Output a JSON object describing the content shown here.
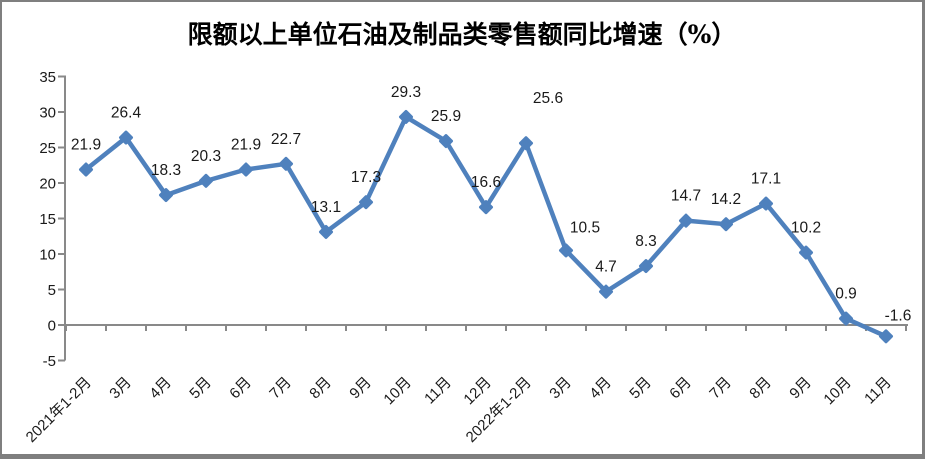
{
  "chart_data": {
    "type": "line",
    "title": "限额以上单位石油及制品类零售额同比增速（%）",
    "categories": [
      "2021年1-2月",
      "3月",
      "4月",
      "5月",
      "6月",
      "7月",
      "8月",
      "9月",
      "10月",
      "11月",
      "12月",
      "2022年1-2月",
      "3月",
      "4月",
      "5月",
      "6月",
      "7月",
      "8月",
      "9月",
      "10月",
      "11月"
    ],
    "values": [
      21.9,
      26.4,
      18.3,
      20.3,
      21.9,
      22.7,
      13.1,
      17.3,
      29.3,
      25.9,
      16.6,
      25.6,
      10.5,
      4.7,
      8.3,
      14.7,
      14.2,
      17.1,
      10.2,
      0.9,
      -1.6
    ],
    "ylim": [
      -5,
      35
    ],
    "yticks": [
      35,
      30,
      25,
      20,
      15,
      10,
      5,
      0,
      -5
    ],
    "ytick_step": 5,
    "xlabel": "",
    "ylabel": "",
    "grid": false,
    "legend_position": "none",
    "data_labels": true,
    "label_offsets": {
      "11": [
        22,
        -20
      ],
      "12": [
        19,
        2
      ],
      "20": [
        12,
        4
      ]
    },
    "line_color": "#4F81BD",
    "axis_color": "#898989",
    "text_color": "#1A1A1A",
    "frame_border_color": "#7F7F7F",
    "background_color": "#FFFFFF"
  }
}
